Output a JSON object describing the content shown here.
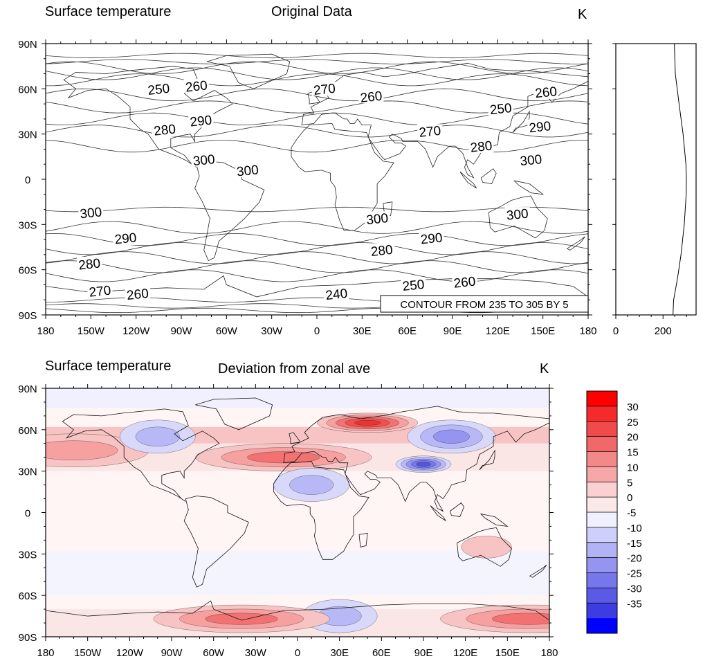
{
  "top": {
    "left_title": "Surface temperature",
    "center_title": "Original Data",
    "units": "K",
    "contour_info": "CONTOUR FROM 235 TO 305 BY 5",
    "side_axis_ticks": [
      "0",
      "200"
    ]
  },
  "bottom": {
    "left_title": "Surface temperature",
    "center_title": "Deviation from zonal ave",
    "units": "K"
  },
  "colors": {
    "land": "#fbfcff",
    "neg": [
      "#f0f0ff",
      "#cfcffb",
      "#b2b2f6",
      "#9595f1",
      "#7777ec",
      "#5a5ae6",
      "#3c3ce0",
      "#1e1edb",
      "#0000ff"
    ],
    "pos": [
      "#fbe6e6",
      "#f8c3c3",
      "#f6a4a4",
      "#f38383",
      "#f06565",
      "#ee4242",
      "#ff0000"
    ]
  },
  "chart_data": [
    {
      "type": "contour",
      "title": "Original Data",
      "subtitle": "Surface temperature",
      "units": "K",
      "x_ticks": [
        "180",
        "150W",
        "120W",
        "90W",
        "60W",
        "30W",
        "0",
        "30E",
        "60E",
        "90E",
        "120E",
        "150E",
        "180"
      ],
      "y_ticks": [
        "90N",
        "60N",
        "30N",
        "0",
        "30S",
        "60S",
        "90S"
      ],
      "xlim": [
        -180,
        180
      ],
      "ylim": [
        -90,
        90
      ],
      "contour_min": 235,
      "contour_max": 305,
      "contour_step": 5,
      "contour_labels": [
        {
          "text": "250",
          "lon": -105,
          "lat": 60
        },
        {
          "text": "260",
          "lon": -80,
          "lat": 62
        },
        {
          "text": "270",
          "lon": 5,
          "lat": 60
        },
        {
          "text": "260",
          "lon": 36,
          "lat": 55
        },
        {
          "text": "260",
          "lon": 152,
          "lat": 58
        },
        {
          "text": "250",
          "lon": 122,
          "lat": 47
        },
        {
          "text": "280",
          "lon": -101,
          "lat": 33
        },
        {
          "text": "290",
          "lon": -77,
          "lat": 39
        },
        {
          "text": "270",
          "lon": 75,
          "lat": 32
        },
        {
          "text": "290",
          "lon": 148,
          "lat": 35
        },
        {
          "text": "280",
          "lon": 109,
          "lat": 22
        },
        {
          "text": "300",
          "lon": -75,
          "lat": 13
        },
        {
          "text": "300",
          "lon": -46,
          "lat": 6
        },
        {
          "text": "300",
          "lon": 142,
          "lat": 13
        },
        {
          "text": "300",
          "lon": -150,
          "lat": -22
        },
        {
          "text": "300",
          "lon": 40,
          "lat": -26
        },
        {
          "text": "300",
          "lon": 133,
          "lat": -23
        },
        {
          "text": "290",
          "lon": -127,
          "lat": -39
        },
        {
          "text": "290",
          "lon": 76,
          "lat": -39
        },
        {
          "text": "280",
          "lon": 43,
          "lat": -47
        },
        {
          "text": "280",
          "lon": -151,
          "lat": -56
        },
        {
          "text": "270",
          "lon": -144,
          "lat": -74
        },
        {
          "text": "260",
          "lon": -119,
          "lat": -76
        },
        {
          "text": "240",
          "lon": 13,
          "lat": -76
        },
        {
          "text": "250",
          "lon": 64,
          "lat": -70
        },
        {
          "text": "260",
          "lon": 98,
          "lat": -68
        }
      ],
      "zonal_mean_panel": {
        "x_ticks": [
          "0",
          "200"
        ],
        "xlim": [
          0,
          340
        ]
      }
    },
    {
      "type": "filled-contour",
      "title": "Deviation from zonal ave",
      "subtitle": "Surface temperature",
      "units": "K",
      "x_ticks": [
        "180",
        "150W",
        "120W",
        "90W",
        "60W",
        "30W",
        "0",
        "30E",
        "60E",
        "90E",
        "120E",
        "150E",
        "180"
      ],
      "y_ticks": [
        "90N",
        "60N",
        "30N",
        "0",
        "30S",
        "60S",
        "90S"
      ],
      "xlim": [
        -180,
        180
      ],
      "ylim": [
        -90,
        90
      ],
      "colorbar_labels": [
        "30",
        "25",
        "20",
        "15",
        "10",
        "5",
        "0",
        "-5",
        "-10",
        "-15",
        "-20",
        "-25",
        "-30",
        "-35"
      ],
      "colorbar_colors": [
        "#ff0000",
        "#f52a2a",
        "#f04a4a",
        "#f06868",
        "#f28888",
        "#f6a8a8",
        "#fad0d0",
        "#fbe8e8",
        "#f0f0ff",
        "#cfcffb",
        "#b2b2f6",
        "#9595f1",
        "#7777ec",
        "#5a5ae6",
        "#3c3ce0",
        "#0000ff"
      ],
      "anomaly_regions": [
        {
          "lon": 50,
          "lat": 65,
          "value": 25
        },
        {
          "lon": -10,
          "lat": 40,
          "value": 15
        },
        {
          "lon": -160,
          "lat": 45,
          "value": 10
        },
        {
          "lon": 90,
          "lat": 35,
          "value": -25
        },
        {
          "lon": 110,
          "lat": 55,
          "value": -15
        },
        {
          "lon": -100,
          "lat": 55,
          "value": -10
        },
        {
          "lon": 10,
          "lat": 20,
          "value": -10
        },
        {
          "lon": 30,
          "lat": -75,
          "value": -10
        },
        {
          "lon": -40,
          "lat": -77,
          "value": 15
        },
        {
          "lon": 165,
          "lat": -77,
          "value": 15
        },
        {
          "lon": 135,
          "lat": -25,
          "value": 5
        }
      ]
    }
  ]
}
